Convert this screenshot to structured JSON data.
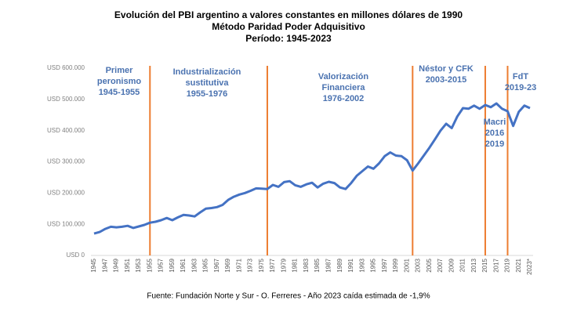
{
  "chart_data": {
    "type": "line",
    "title": [
      "Evolución del PBI argentino a valores constantes en millones dólares de 1990",
      "Método Paridad Poder Adquisitivo",
      "Período: 1945-2023"
    ],
    "source": "Fuente: Fundación Norte y Sur - O. Ferreres - Año 2023 caída estimada de -1,9%",
    "color": "#4472c4",
    "vline_color": "#ed7d31",
    "x": [
      1945,
      1946,
      1947,
      1948,
      1949,
      1950,
      1951,
      1952,
      1953,
      1954,
      1955,
      1956,
      1957,
      1958,
      1959,
      1960,
      1961,
      1962,
      1963,
      1964,
      1965,
      1966,
      1967,
      1968,
      1969,
      1970,
      1971,
      1972,
      1973,
      1974,
      1975,
      1976,
      1977,
      1978,
      1979,
      1980,
      1981,
      1982,
      1983,
      1984,
      1985,
      1986,
      1987,
      1988,
      1989,
      1990,
      1991,
      1992,
      1993,
      1994,
      1995,
      1996,
      1997,
      1998,
      1999,
      2000,
      2001,
      2002,
      2003,
      2004,
      2005,
      2006,
      2007,
      2008,
      2009,
      2010,
      2011,
      2012,
      2013,
      2014,
      2015,
      2016,
      2017,
      2018,
      2019,
      2020,
      2021,
      2022,
      2023
    ],
    "values": [
      70000,
      75000,
      85000,
      92000,
      90000,
      92000,
      95000,
      88000,
      93000,
      98000,
      105000,
      108000,
      113000,
      120000,
      113000,
      122000,
      130000,
      128000,
      125000,
      138000,
      150000,
      152000,
      155000,
      162000,
      178000,
      188000,
      195000,
      200000,
      207000,
      215000,
      214000,
      213000,
      226000,
      220000,
      235000,
      238000,
      225000,
      220000,
      228000,
      233000,
      218000,
      230000,
      236000,
      232000,
      218000,
      213000,
      232000,
      255000,
      270000,
      285000,
      278000,
      295000,
      318000,
      330000,
      320000,
      318000,
      305000,
      272000,
      295000,
      320000,
      345000,
      372000,
      400000,
      422000,
      408000,
      445000,
      472000,
      470000,
      480000,
      470000,
      482000,
      475000,
      487000,
      470000,
      462000,
      415000,
      460000,
      480000,
      472000
    ],
    "xlim": [
      1945,
      2023
    ],
    "xticks": [
      1945,
      1947,
      1949,
      1951,
      1953,
      1955,
      1957,
      1959,
      1961,
      1963,
      1965,
      1967,
      1969,
      1971,
      1973,
      1975,
      1977,
      1979,
      1981,
      1983,
      1985,
      1987,
      1989,
      1991,
      1993,
      1995,
      1997,
      1999,
      2001,
      2003,
      2005,
      2007,
      2009,
      2011,
      2013,
      2015,
      2017,
      2019,
      2021,
      {
        "value": 2023,
        "label": "2023*"
      }
    ],
    "ylim": [
      0,
      600000
    ],
    "yticks": [
      {
        "value": 0,
        "label": "USD 0"
      },
      {
        "value": 100000,
        "label": "USD 100.000"
      },
      {
        "value": 200000,
        "label": "USD 200.000"
      },
      {
        "value": 300000,
        "label": "USD 300.000"
      },
      {
        "value": 400000,
        "label": "USD 400.000"
      },
      {
        "value": 500000,
        "label": "USD 500.000"
      },
      {
        "value": 600000,
        "label": "USD 600.000"
      }
    ],
    "vlines": [
      1955,
      1976,
      2002,
      2015,
      2019
    ],
    "annotations": [
      [
        "Primer",
        "peronismo",
        "1945-1955"
      ],
      [
        "Industrialización",
        "sustitutiva",
        "1955-1976"
      ],
      [
        "Valorización",
        "Financiera",
        "1976-2002"
      ],
      [
        "Néstor y CFK",
        "2003-2015"
      ],
      [
        "Macri",
        "2016",
        "2019"
      ],
      [
        "FdT",
        "2019-23"
      ]
    ]
  }
}
